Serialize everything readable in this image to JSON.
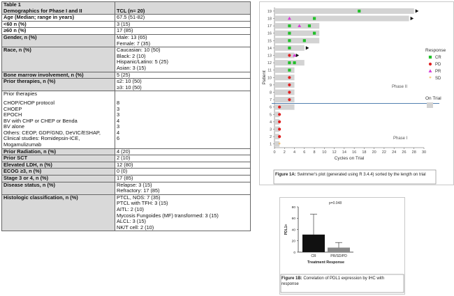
{
  "table": {
    "title": "Table 1",
    "header_label": "Demographics for Phase I and II",
    "header_value": "TCL (n= 20)",
    "rows": [
      {
        "label": "Age (Median; range in years)",
        "value": "67.5 (51-82)",
        "style": "white"
      },
      {
        "label": "<60 n (%)",
        "value": "3 (15)",
        "style": "white"
      },
      {
        "label": "≥60 n (%)",
        "value": "17 (85)",
        "style": "white"
      },
      {
        "label": "Gender, n (%)",
        "values": [
          "Male: 13 (65)",
          "Female: 7 (35)"
        ],
        "style": "gray"
      },
      {
        "label": "Race, n (%)",
        "values": [
          "Caucasian: 10 (50)",
          "Black: 2 (10)",
          "Hispanic/Latino: 5 (25)",
          "Asian: 3 (15)"
        ],
        "style": "gray"
      },
      {
        "label": "Bone marrow involvement, n (%)",
        "value": "5 (25)",
        "style": "gray"
      },
      {
        "label": "Prior therapies, n (%)",
        "values": [
          "≤2: 10 (50)",
          "≥3: 10 (50)"
        ],
        "style": "gray"
      },
      {
        "label": "Prior therapies",
        "style": "plain",
        "items": [
          {
            "name": "CHOP/CHOP protocol",
            "n": "8"
          },
          {
            "name": "CHOEP",
            "n": "3"
          },
          {
            "name": "EPOCH",
            "n": "3"
          },
          {
            "name": "BV with CHP or CHEP or Benda",
            "n": "4"
          },
          {
            "name": "BV alone",
            "n": "3"
          },
          {
            "name": "Others: CEOP, GDP/GND, DeVIC/ESHAP,",
            "n": "4"
          },
          {
            "name": "Clinical studies: Romidepsin-ICE, Mogamulizumab",
            "n": "6"
          }
        ]
      },
      {
        "label": "Prior Radiation, n (%)",
        "value": "4 (20)",
        "style": "gray"
      },
      {
        "label": "Prior SCT",
        "value": "2 (10)",
        "style": "gray"
      },
      {
        "label": "Elevated LDH, n (%)",
        "value": "12 (80)",
        "style": "gray"
      },
      {
        "label": "ECOG ≥3, n (%)",
        "value": "0 (0)",
        "style": "gray"
      },
      {
        "label": "Stage 3 or 4, n (%)",
        "value": "17 (85)",
        "style": "gray"
      },
      {
        "label": "Disease status, n (%)",
        "values": [
          "Relapse: 3 (15)",
          "Refractory: 17 (85)"
        ],
        "style": "gray"
      },
      {
        "label": "Histologic classification, n (%)",
        "values": [
          "PTCL, NOS: 7 (35)",
          "PTCL with TFH: 3 (15)",
          "AITL: 2 (10)",
          "Mycosis Fungoides (MF) transformed: 3 (15)",
          "ALCL: 3 (15)",
          "NK/T cell: 2 (10)"
        ],
        "style": "gray"
      }
    ]
  },
  "chart_data": [
    {
      "type": "bar",
      "orientation": "horizontal",
      "xlabel": "Cycles on Trial",
      "ylabel": "Patient",
      "xticks": [
        0,
        2,
        4,
        6,
        8,
        10,
        12,
        14,
        16,
        18,
        20,
        22,
        24,
        26,
        28,
        30
      ],
      "xlim": [
        0,
        30
      ],
      "patients": [
        1,
        2,
        3,
        4,
        5,
        6,
        7,
        8,
        9,
        10,
        11,
        12,
        13,
        14,
        15,
        16,
        17,
        18,
        19
      ],
      "bar_length": [
        1,
        1,
        1,
        1,
        1,
        4,
        4,
        4,
        4,
        4,
        4,
        6,
        4,
        6,
        9,
        9,
        9,
        27,
        28
      ],
      "ongoing": [
        19,
        18,
        14,
        13
      ],
      "events": {
        "CR": [
          [
            19,
            17
          ],
          [
            18,
            8
          ],
          [
            17,
            3
          ],
          [
            17,
            7
          ],
          [
            16,
            3
          ],
          [
            16,
            8
          ],
          [
            15,
            3
          ],
          [
            15,
            6
          ],
          [
            14,
            3
          ],
          [
            12,
            3
          ],
          [
            12,
            4
          ],
          [
            11,
            3
          ]
        ],
        "PD": [
          [
            13,
            3
          ],
          [
            10,
            3
          ],
          [
            9,
            3
          ],
          [
            8,
            3
          ],
          [
            7,
            3
          ],
          [
            6,
            1
          ],
          [
            5,
            1
          ],
          [
            4,
            1
          ],
          [
            3,
            1
          ],
          [
            2,
            1
          ]
        ],
        "PR": [
          [
            18,
            3
          ],
          [
            17,
            5
          ],
          [
            13,
            4
          ]
        ],
        "SD": [
          [
            1,
            1
          ]
        ]
      },
      "phase_labels": [
        "Phase II",
        "Phase I"
      ],
      "legend": {
        "title": "Response",
        "items": [
          "CR",
          "PD",
          "PR",
          "SD"
        ],
        "colors": [
          "#22c02a",
          "#e02020",
          "#d63ad6",
          "#f2a020"
        ],
        "ontrial_label": "On Trial",
        "ontrial_color": "#d3d3d3"
      },
      "caption_bold": "Figure 1A:",
      "caption": " Swimmer's plot (generated using R 3.4.4) sorted by the length on trial"
    },
    {
      "type": "bar",
      "categories": [
        "CR",
        "PR/SD/PD"
      ],
      "values": [
        31,
        8
      ],
      "errors": [
        36,
        9
      ],
      "ylim": [
        0,
        80
      ],
      "yticks": [
        0,
        20,
        40,
        60,
        80
      ],
      "ylabel": "PDL1+",
      "xlabel": "Treatment Response",
      "annotation": "p=0.048",
      "caption_bold": "Figure 1B:",
      "caption": " Correlation of PDL1 expression by IHC with response"
    }
  ],
  "colors": {
    "header_gray": "#d9d9d9",
    "bar_gray": "#d3d3d3",
    "phase_line": "#3a6ea5"
  }
}
